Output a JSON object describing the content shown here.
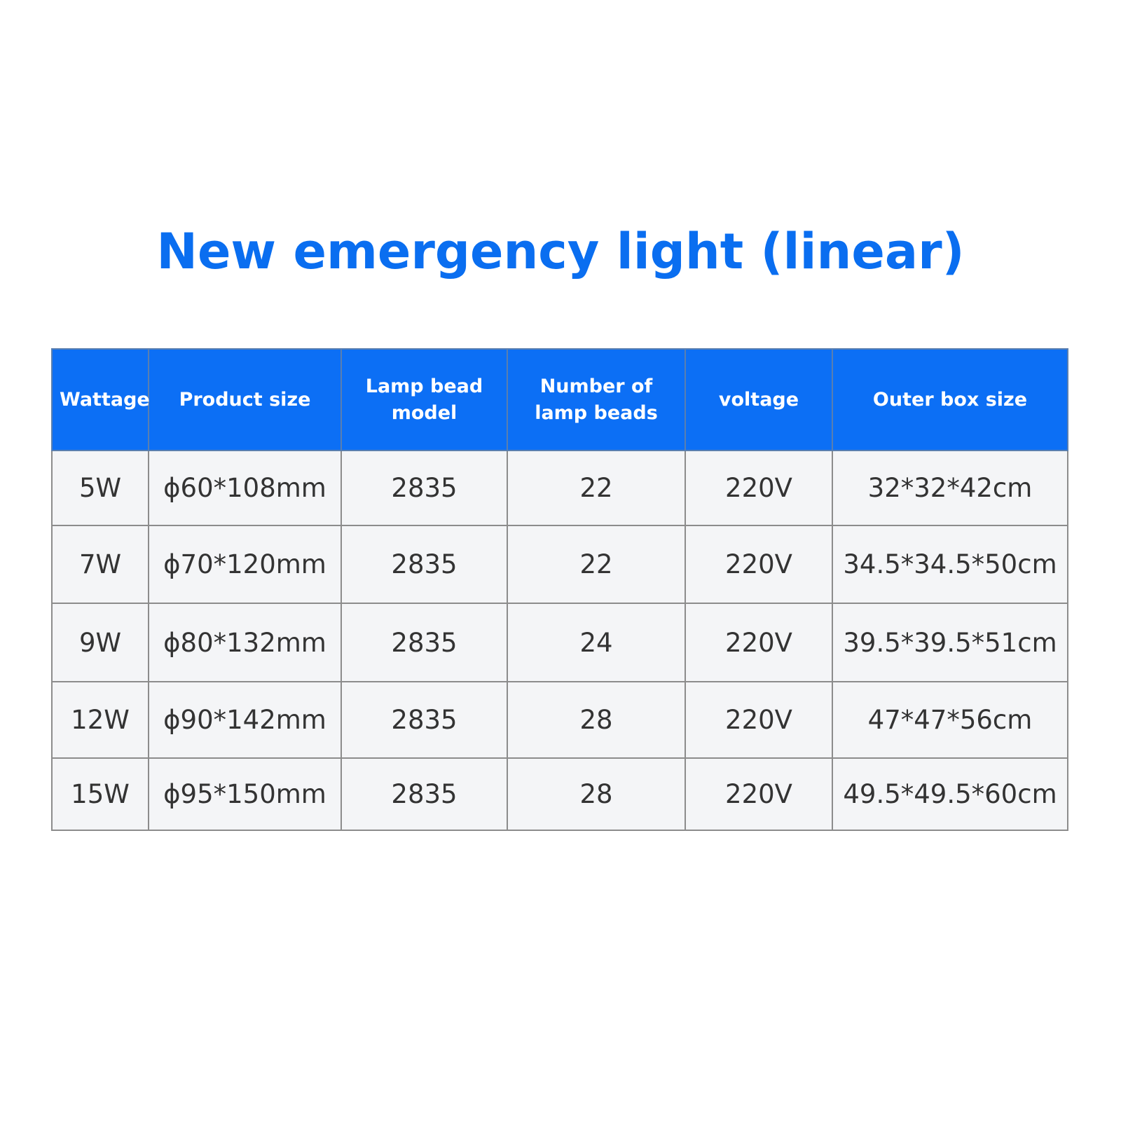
{
  "header": {
    "title": "New emergency light (linear)"
  },
  "table": {
    "columns": [
      "Wattage",
      "Product size",
      "Lamp bead model",
      "Number of lamp beads",
      "voltage",
      "Outer box size"
    ],
    "rows": [
      [
        "5W",
        "ϕ60*108mm",
        "2835",
        "22",
        "220V",
        "32*32*42cm"
      ],
      [
        "7W",
        "ϕ70*120mm",
        "2835",
        "22",
        "220V",
        "34.5*34.5*50cm"
      ],
      [
        "9W",
        "ϕ80*132mm",
        "2835",
        "24",
        "220V",
        "39.5*39.5*51cm"
      ],
      [
        "12W",
        "ϕ90*142mm",
        "2835",
        "28",
        "220V",
        "47*47*56cm"
      ],
      [
        "15W",
        "ϕ95*150mm",
        "2835",
        "28",
        "220V",
        "49.5*49.5*60cm"
      ]
    ]
  }
}
